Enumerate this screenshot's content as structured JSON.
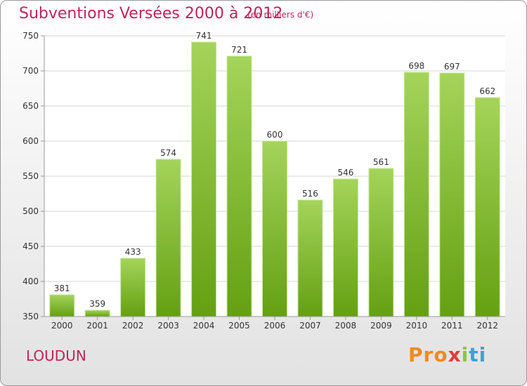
{
  "chart_data": {
    "type": "bar",
    "title": "Subventions Versées 2000 à 2012",
    "subtitle": "(en milliers d'€)",
    "categories": [
      "2000",
      "2001",
      "2002",
      "2003",
      "2004",
      "2005",
      "2006",
      "2007",
      "2008",
      "2009",
      "2010",
      "2011",
      "2012"
    ],
    "values": [
      381,
      359,
      433,
      574,
      741,
      721,
      600,
      516,
      546,
      561,
      698,
      697,
      662
    ],
    "ylim": [
      350,
      750
    ],
    "yticks": [
      350,
      400,
      450,
      500,
      550,
      600,
      650,
      700,
      750
    ],
    "grid": true,
    "colors": {
      "bar_top": "#a4d45a",
      "bar_bottom": "#64a012",
      "bar_stroke": "#c6e89a",
      "grid": "#d6d6d6"
    }
  },
  "footer": {
    "city": "LOUDUN",
    "logo": [
      "Pro",
      "x",
      "i",
      "ti"
    ]
  }
}
